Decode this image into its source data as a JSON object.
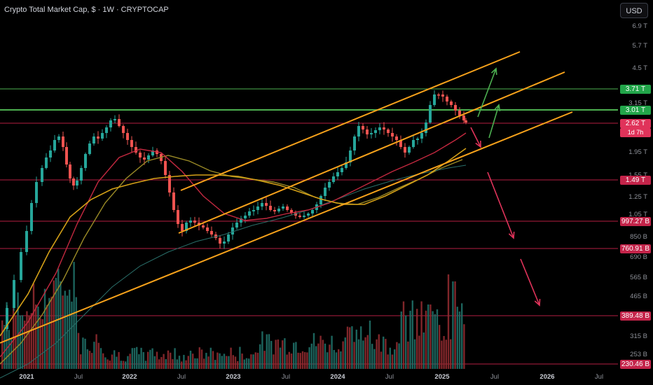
{
  "header": {
    "title": "Crypto Total Market Cap, $ · 1W · CRYPTOCAP",
    "currency_button": "USD"
  },
  "price_axis": {
    "labels": [
      "6.9 T",
      "5.7 T",
      "4.5 T",
      "3.15 T",
      "1.95 T",
      "1.55 T",
      "1.25 T",
      "1.05 T",
      "850 B",
      "690 B",
      "565 B",
      "465 B",
      "315 B",
      "253 B"
    ]
  },
  "price_tags": [
    {
      "label": "3.71 T",
      "color": "#22a64a"
    },
    {
      "label": "3.01 T",
      "color": "#22a64a"
    },
    {
      "label": "2.62 T",
      "sub": "1d 7h",
      "color": "#e0335a"
    },
    {
      "label": "1.49 T",
      "color": "#c4244a"
    },
    {
      "label": "997.27 B",
      "color": "#c4244a"
    },
    {
      "label": "760.91 B",
      "color": "#c4244a"
    },
    {
      "label": "389.48 B",
      "color": "#c4244a"
    },
    {
      "label": "230.46 B",
      "color": "#c4244a"
    }
  ],
  "time_axis": {
    "labels": [
      {
        "text": "2021",
        "bold": true
      },
      {
        "text": "Jul",
        "bold": false
      },
      {
        "text": "2022",
        "bold": true
      },
      {
        "text": "Jul",
        "bold": false
      },
      {
        "text": "2023",
        "bold": true
      },
      {
        "text": "Jul",
        "bold": false
      },
      {
        "text": "2024",
        "bold": true
      },
      {
        "text": "Jul",
        "bold": false
      },
      {
        "text": "2025",
        "bold": true
      },
      {
        "text": "Jul",
        "bold": false
      },
      {
        "text": "2026",
        "bold": true
      },
      {
        "text": "Jul",
        "bold": false
      }
    ]
  },
  "colors": {
    "channel": "#f7a21b",
    "resistance": "#4caf50",
    "support": "#b51e42",
    "candle_up": "#26a69a",
    "candle_down": "#ef5350",
    "ma_fast": "#d4a017",
    "ma_red": "#c2283f",
    "ma_slow": "#2a6f6a",
    "arrow_up": "#4caf50",
    "arrow_down": "#e0335a"
  }
}
